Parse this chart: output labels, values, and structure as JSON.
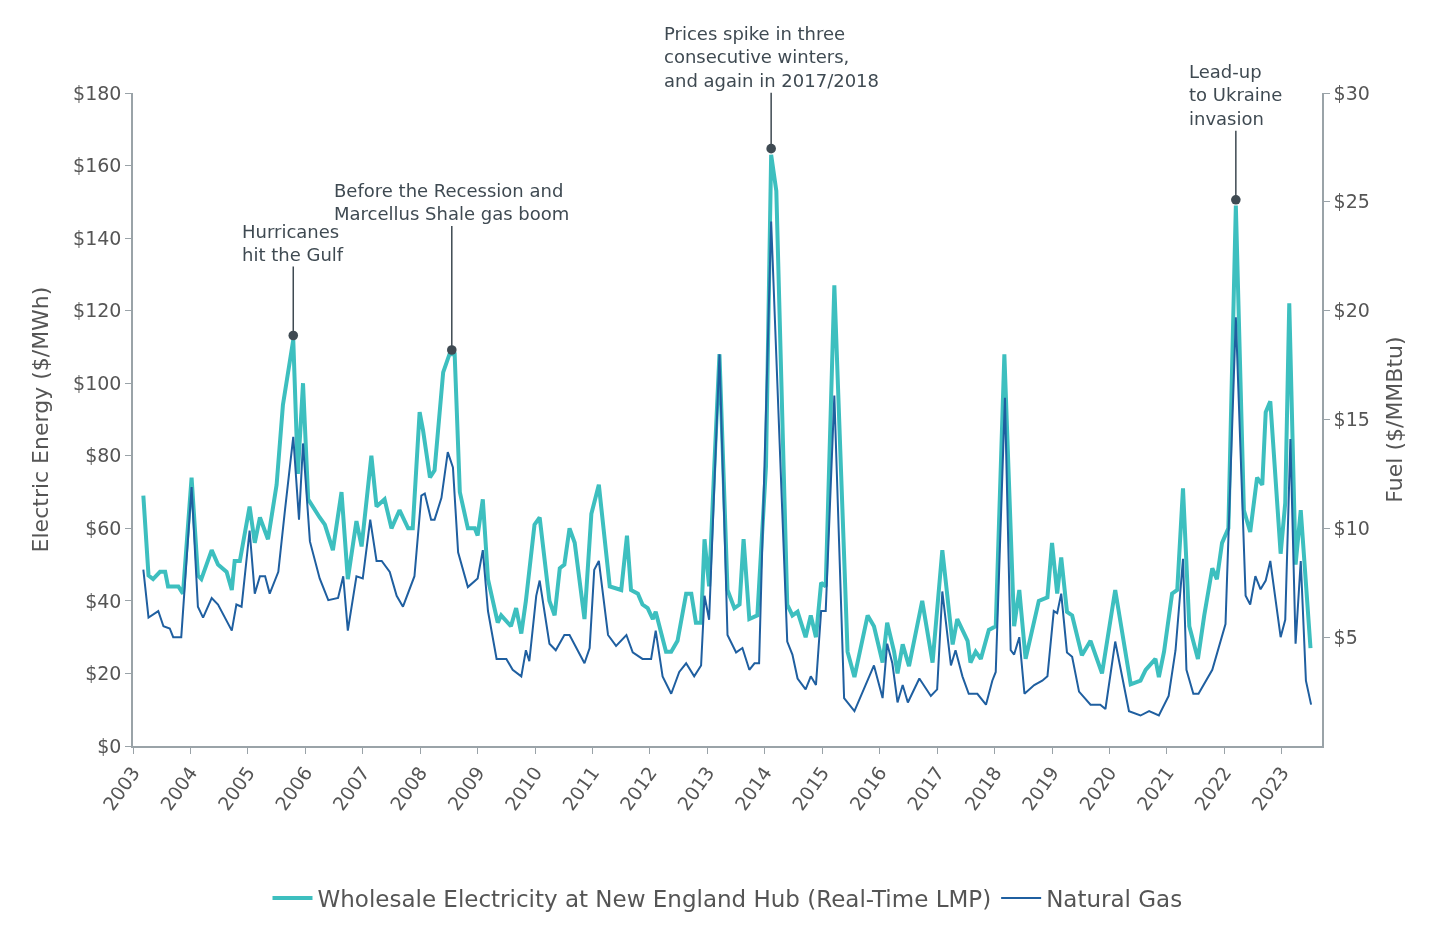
{
  "chart_data": {
    "type": "line",
    "xlim": [
      2003,
      2023.7
    ],
    "xticks": [
      2003,
      2004,
      2005,
      2006,
      2007,
      2008,
      2009,
      2010,
      2011,
      2012,
      2013,
      2014,
      2015,
      2016,
      2017,
      2018,
      2019,
      2020,
      2021,
      2022,
      2023
    ],
    "ylim": [
      0,
      180
    ],
    "yticks": [
      {
        "value": 0,
        "label": "$0"
      },
      {
        "value": 20,
        "label": "$20"
      },
      {
        "value": 40,
        "label": "$40"
      },
      {
        "value": 60,
        "label": "$60"
      },
      {
        "value": 80,
        "label": "$80"
      },
      {
        "value": 100,
        "label": "$100"
      },
      {
        "value": 120,
        "label": "$120"
      },
      {
        "value": 140,
        "label": "$140"
      },
      {
        "value": 160,
        "label": "$160"
      },
      {
        "value": 180,
        "label": "$180"
      }
    ],
    "y2lim": [
      0,
      30
    ],
    "y2ticks": [
      {
        "value": 5,
        "label": "$5"
      },
      {
        "value": 10,
        "label": "$10"
      },
      {
        "value": 15,
        "label": "$15"
      },
      {
        "value": 20,
        "label": "$20"
      },
      {
        "value": 25,
        "label": "$25"
      },
      {
        "value": 30,
        "label": "$30"
      }
    ],
    "ylabel": "Electric Energy ($/MWh)",
    "y2label": "Fuel ($/MMBtu)",
    "legend": "bottom",
    "line_style": "solid",
    "series": [
      {
        "name": "Wholesale Electricity at New England Hub (Real-Time LMP)",
        "color": "#3dbfbf",
        "x": [
          2003.18,
          2003.27,
          2003.35,
          2003.47,
          2003.56,
          2003.61,
          2003.79,
          2003.87,
          2004.02,
          2004.13,
          2004.19,
          2004.37,
          2004.48,
          2004.63,
          2004.72,
          2004.77,
          2004.86,
          2005.03,
          2005.12,
          2005.21,
          2005.35,
          2005.5,
          2005.61,
          2005.79,
          2005.87,
          2005.96,
          2006.05,
          2006.25,
          2006.34,
          2006.48,
          2006.63,
          2006.74,
          2006.89,
          2006.98,
          2007.15,
          2007.24,
          2007.38,
          2007.5,
          2007.64,
          2007.79,
          2007.87,
          2007.99,
          2008.05,
          2008.17,
          2008.25,
          2008.4,
          2008.51,
          2008.6,
          2008.69,
          2008.83,
          2008.95,
          2009.0,
          2009.09,
          2009.18,
          2009.35,
          2009.41,
          2009.58,
          2009.67,
          2009.76,
          2009.84,
          2009.99,
          2010.08,
          2010.25,
          2010.34,
          2010.43,
          2010.51,
          2010.6,
          2010.69,
          2010.86,
          2010.98,
          2011.11,
          2011.3,
          2011.5,
          2011.6,
          2011.67,
          2011.79,
          2011.87,
          2011.96,
          2012.05,
          2012.1,
          2012.28,
          2012.37,
          2012.48,
          2012.63,
          2012.72,
          2012.8,
          2012.89,
          2012.95,
          2013.03,
          2013.12,
          2013.21,
          2013.35,
          2013.47,
          2013.56,
          2013.63,
          2013.73,
          2013.87,
          2014.02,
          2014.11,
          2014.2,
          2014.39,
          2014.48,
          2014.57,
          2014.71,
          2014.8,
          2014.89,
          2014.98,
          2015.06,
          2015.21,
          2015.44,
          2015.56,
          2015.79,
          2015.9,
          2016.05,
          2016.13,
          2016.25,
          2016.31,
          2016.4,
          2016.51,
          2016.74,
          2016.92,
          2017.09,
          2017.27,
          2017.35,
          2017.53,
          2017.58,
          2017.67,
          2017.76,
          2017.9,
          2018.02,
          2018.17,
          2018.34,
          2018.43,
          2018.54,
          2018.77,
          2018.92,
          2019.0,
          2019.09,
          2019.16,
          2019.26,
          2019.35,
          2019.52,
          2019.67,
          2019.87,
          2020.1,
          2020.37,
          2020.54,
          2020.63,
          2020.8,
          2020.86,
          2020.95,
          2021.09,
          2021.18,
          2021.28,
          2021.39,
          2021.54,
          2021.65,
          2021.79,
          2021.87,
          2021.96,
          2022.07,
          2022.2,
          2022.34,
          2022.45,
          2022.57,
          2022.66,
          2022.72,
          2022.8,
          2022.98,
          2023.06,
          2023.13,
          2023.24,
          2023.33,
          2023.5
        ],
        "values": [
          69,
          47,
          46,
          48,
          48,
          44,
          44,
          42,
          74,
          47,
          46,
          54,
          50,
          48,
          43,
          51,
          51,
          66,
          56,
          63,
          57,
          72,
          94,
          112,
          75,
          100,
          68,
          63,
          61,
          54,
          70,
          46,
          62,
          55,
          80,
          66,
          68,
          60,
          65,
          60,
          60,
          92,
          87,
          74,
          76,
          103,
          108,
          108,
          70,
          60,
          60,
          58,
          68,
          46,
          34,
          36,
          33,
          38,
          31,
          40,
          61,
          63,
          40,
          36,
          49,
          50,
          60,
          56,
          35,
          64,
          72,
          44,
          43,
          58,
          43,
          42,
          39,
          38,
          35,
          37,
          26,
          26,
          29,
          42,
          42,
          34,
          34,
          57,
          44,
          77,
          108,
          43,
          38,
          39,
          57,
          35,
          36,
          77,
          163,
          153,
          39,
          36,
          37,
          30,
          36,
          30,
          45,
          44,
          127,
          26,
          19,
          36,
          33,
          23,
          34,
          26,
          20,
          28,
          22,
          40,
          23,
          54,
          28,
          35,
          29,
          23,
          26,
          24,
          32,
          33,
          108,
          33,
          43,
          24,
          40,
          41,
          56,
          42,
          52,
          37,
          36,
          25,
          29,
          20,
          43,
          17,
          18,
          21,
          24,
          19,
          26,
          42,
          43,
          71,
          33,
          24,
          36,
          49,
          46,
          56,
          60,
          149,
          65,
          59,
          74,
          72,
          92,
          95,
          53,
          67,
          122,
          50,
          65,
          27
        ]
      },
      {
        "name": "Natural Gas",
        "color": "#1f5fa0",
        "axis": "y2",
        "x": [
          2003.18,
          2003.27,
          2003.44,
          2003.53,
          2003.64,
          2003.7,
          2003.84,
          2004.02,
          2004.13,
          2004.22,
          2004.37,
          2004.48,
          2004.72,
          2004.8,
          2004.89,
          2005.03,
          2005.12,
          2005.21,
          2005.3,
          2005.38,
          2005.53,
          2005.64,
          2005.79,
          2005.89,
          2005.96,
          2006.08,
          2006.25,
          2006.4,
          2006.57,
          2006.66,
          2006.74,
          2006.89,
          2007.0,
          2007.13,
          2007.24,
          2007.33,
          2007.47,
          2007.59,
          2007.7,
          2007.9,
          2008.02,
          2008.08,
          2008.19,
          2008.25,
          2008.37,
          2008.48,
          2008.57,
          2008.66,
          2008.83,
          2009.0,
          2009.09,
          2009.18,
          2009.33,
          2009.5,
          2009.61,
          2009.76,
          2009.84,
          2009.9,
          2010.02,
          2010.08,
          2010.25,
          2010.36,
          2010.51,
          2010.6,
          2010.86,
          2010.95,
          2011.03,
          2011.11,
          2011.27,
          2011.41,
          2011.59,
          2011.7,
          2011.87,
          2012.02,
          2012.1,
          2012.22,
          2012.37,
          2012.51,
          2012.63,
          2012.77,
          2012.89,
          2012.95,
          2013.03,
          2013.21,
          2013.35,
          2013.5,
          2013.61,
          2013.73,
          2013.82,
          2013.9,
          2014.11,
          2014.39,
          2014.48,
          2014.57,
          2014.71,
          2014.8,
          2014.89,
          2014.98,
          2015.06,
          2015.21,
          2015.38,
          2015.56,
          2015.9,
          2016.05,
          2016.13,
          2016.22,
          2016.31,
          2016.4,
          2016.49,
          2016.69,
          2016.89,
          2017.0,
          2017.09,
          2017.24,
          2017.32,
          2017.44,
          2017.55,
          2017.7,
          2017.85,
          2017.96,
          2018.02,
          2018.18,
          2018.28,
          2018.34,
          2018.43,
          2018.52,
          2018.69,
          2018.83,
          2018.92,
          2019.03,
          2019.09,
          2019.16,
          2019.26,
          2019.35,
          2019.47,
          2019.67,
          2019.84,
          2019.93,
          2020.1,
          2020.34,
          2020.54,
          2020.69,
          2020.86,
          2021.03,
          2021.15,
          2021.28,
          2021.34,
          2021.46,
          2021.55,
          2021.79,
          2022.02,
          2022.2,
          2022.37,
          2022.45,
          2022.54,
          2022.63,
          2022.72,
          2022.8,
          2022.98,
          2023.06,
          2023.15,
          2023.24,
          2023.33,
          2023.42,
          2023.51
        ],
        "values": [
          8.1,
          5.9,
          6.2,
          5.5,
          5.4,
          5.0,
          5.0,
          11.9,
          6.4,
          5.9,
          6.8,
          6.5,
          5.3,
          6.5,
          6.4,
          9.9,
          7.0,
          7.8,
          7.8,
          7.0,
          8.0,
          10.7,
          14.2,
          10.4,
          13.9,
          9.4,
          7.7,
          6.7,
          6.8,
          7.8,
          5.3,
          7.8,
          7.7,
          10.4,
          8.5,
          8.5,
          8.0,
          6.9,
          6.4,
          7.8,
          11.5,
          11.6,
          10.4,
          10.4,
          11.4,
          13.5,
          12.8,
          8.9,
          7.3,
          7.7,
          9.0,
          6.2,
          4.0,
          4.0,
          3.5,
          3.2,
          4.4,
          3.9,
          6.9,
          7.6,
          4.7,
          4.4,
          5.1,
          5.1,
          3.8,
          4.5,
          8.1,
          8.5,
          5.1,
          4.6,
          5.1,
          4.3,
          4.0,
          4.0,
          5.3,
          3.2,
          2.4,
          3.4,
          3.8,
          3.2,
          3.7,
          6.9,
          5.8,
          18.0,
          5.1,
          4.3,
          4.5,
          3.5,
          3.8,
          3.8,
          24.1,
          4.8,
          4.2,
          3.1,
          2.6,
          3.2,
          2.8,
          6.2,
          6.2,
          16.1,
          2.2,
          1.6,
          3.7,
          2.2,
          4.7,
          3.8,
          2.0,
          2.8,
          2.0,
          3.1,
          2.3,
          2.6,
          7.1,
          3.7,
          4.4,
          3.2,
          2.4,
          2.4,
          1.9,
          3.0,
          3.4,
          16.0,
          4.4,
          4.2,
          5.0,
          2.4,
          2.8,
          3.0,
          3.2,
          6.2,
          6.1,
          7.0,
          4.3,
          4.1,
          2.5,
          1.9,
          1.9,
          1.7,
          4.8,
          1.6,
          1.4,
          1.6,
          1.4,
          2.3,
          4.4,
          8.6,
          3.5,
          2.4,
          2.4,
          3.5,
          5.6,
          19.7,
          6.9,
          6.5,
          7.8,
          7.2,
          7.6,
          8.5,
          5.0,
          5.8,
          14.1,
          4.7,
          8.5,
          3.0,
          1.9
        ]
      }
    ],
    "annotations": [
      {
        "text": "Hurricanes\nhit the Gulf",
        "x": 2005.79,
        "y": 111.5
      },
      {
        "text": "Before the Recession and\nMarcellus Shale gas boom",
        "x": 2008.55,
        "y": 107.5
      },
      {
        "text": "Prices spike in three\nconsecutive winters,\nand again in 2017/2018",
        "x": 2014.11,
        "y": 163
      },
      {
        "text": "Lead-up\nto Ukraine\ninvasion",
        "x": 2022.2,
        "y": 148.9
      }
    ]
  }
}
